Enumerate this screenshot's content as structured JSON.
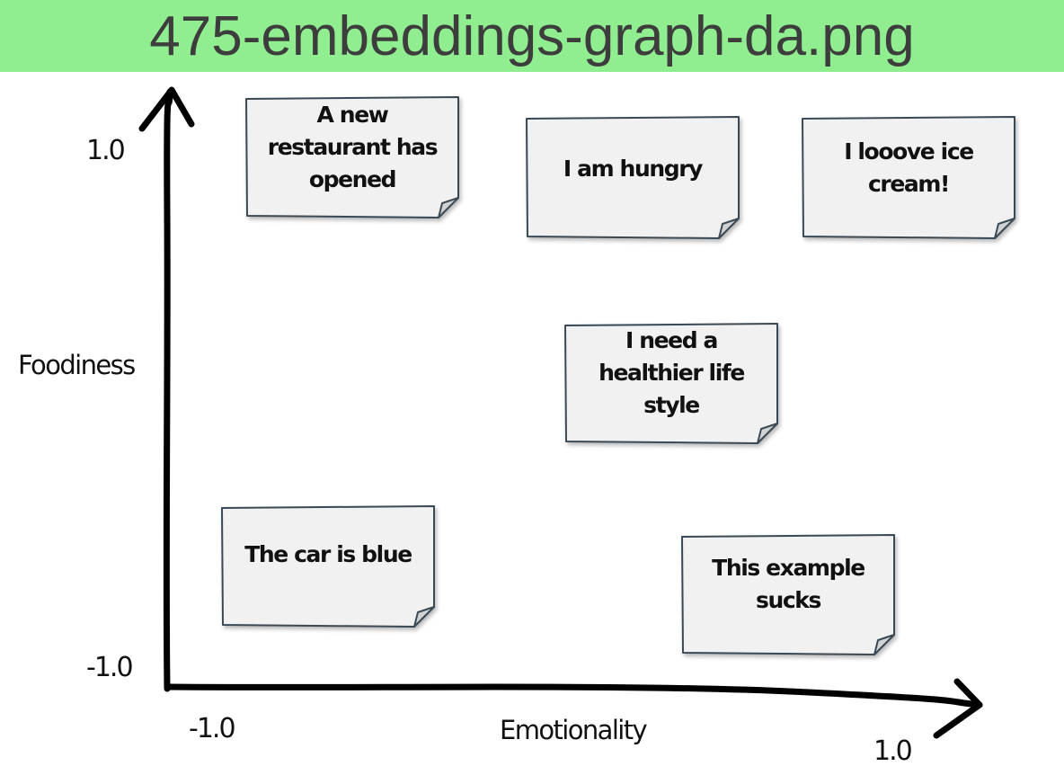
{
  "banner": {
    "title": "475-embeddings-graph-da.png"
  },
  "axes": {
    "y_title": "Foodiness",
    "x_title": "Emotionality",
    "y_max_label": "1.0",
    "y_min_label": "-1.0",
    "x_min_label": "-1.0",
    "x_max_label": "1.0"
  },
  "notes": [
    {
      "lines": [
        "A new",
        "restaurant has",
        "opened"
      ]
    },
    {
      "lines": [
        "I am hungry"
      ]
    },
    {
      "lines": [
        "I looove ice",
        "cream!"
      ]
    },
    {
      "lines": [
        "I need a",
        "healthier life",
        "style"
      ]
    },
    {
      "lines": [
        "The car is blue"
      ]
    },
    {
      "lines": [
        "This example",
        "sucks"
      ]
    }
  ],
  "colors": {
    "banner": "#90ee90",
    "banner_text": "#3d3d3d",
    "note_fill": "#f1f1f1",
    "note_border": "#3b4a55",
    "axis": "#000000"
  }
}
